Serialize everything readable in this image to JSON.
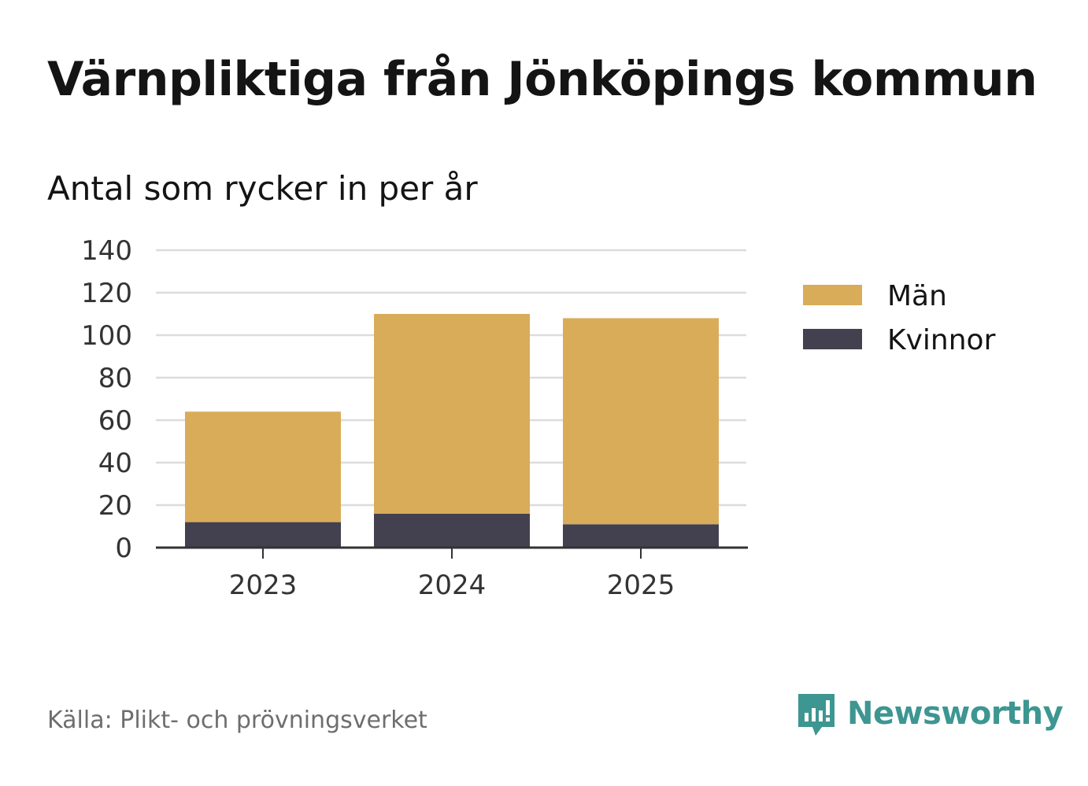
{
  "title": "Värnpliktiga från Jönköpings kommun",
  "subtitle": "Antal som rycker in per år",
  "source": "Källa: Plikt- och prövningsverket",
  "brand": "Newsworthy",
  "colors": {
    "men": "#d9ac5a",
    "women": "#43414f",
    "grid": "#dcdcdc",
    "axis": "#333333",
    "brand": "#3d9691"
  },
  "chart_data": {
    "type": "bar",
    "stacked": true,
    "categories": [
      "2023",
      "2024",
      "2025"
    ],
    "series": [
      {
        "name": "Kvinnor",
        "values": [
          12,
          16,
          11
        ],
        "color": "#43414f"
      },
      {
        "name": "Män",
        "values": [
          52,
          94,
          97
        ],
        "color": "#d9ac5a"
      }
    ],
    "legend": [
      "Män",
      "Kvinnor"
    ],
    "legend_position": "right",
    "ylim": [
      0,
      140
    ],
    "yticks": [
      "0",
      "20",
      "40",
      "60",
      "80",
      "100",
      "120",
      "140"
    ],
    "grid": true
  }
}
